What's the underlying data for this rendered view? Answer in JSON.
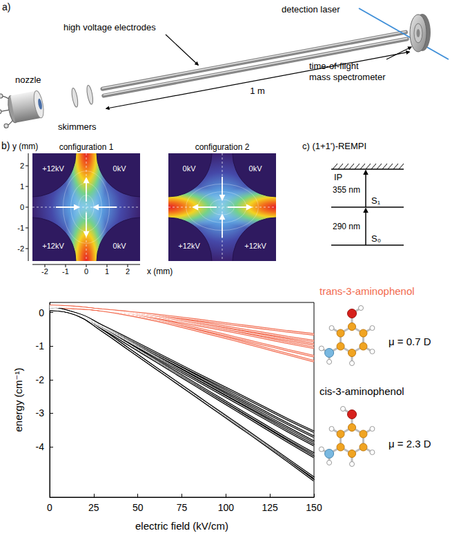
{
  "panel_a": {
    "label": "a)",
    "labels": {
      "nozzle": "nozzle",
      "skimmers": "skimmers",
      "electrodes": "high voltage electrodes",
      "laser": "detection laser",
      "length": "1 m",
      "spectrometer": "time-of-flight mass spectrometer"
    }
  },
  "panel_b": {
    "label": "b)",
    "x_axis_title": "x (mm)",
    "y_axis_title": "y (mm)",
    "xlim": [
      -2.6,
      2.6
    ],
    "ylim": [
      -2.6,
      2.6
    ],
    "xticks": [
      -2,
      -1,
      0,
      1,
      2
    ],
    "yticks": [
      -2,
      -1,
      0,
      1,
      2
    ],
    "configurations": [
      {
        "title": "configuration 1",
        "electrodes": {
          "top_left": "+12kV",
          "top_right": "0kV",
          "bottom_left": "+12kV",
          "bottom_right": "0kV"
        }
      },
      {
        "title": "configuration 2",
        "electrodes": {
          "top_left": "0kV",
          "top_right": "0kV",
          "bottom_left": "+12kV",
          "bottom_right": "+12kV"
        }
      }
    ]
  },
  "panel_c": {
    "label": "c)",
    "title": "(1+1')-REMPI",
    "levels": [
      "S₀",
      "S₁",
      "IP"
    ],
    "transitions": [
      "290 nm",
      "355 nm"
    ]
  },
  "chart_data": {
    "type": "line",
    "x_label": "electric field (kV/cm)",
    "y_label": "energy (cm⁻¹)",
    "x": [
      0,
      15,
      30,
      45,
      60,
      75,
      90,
      105,
      120,
      135,
      150
    ],
    "xlim": [
      0,
      150
    ],
    "xticks": [
      0,
      25,
      50,
      75,
      100,
      125,
      150
    ],
    "ylim": [
      -5.5,
      0.3
    ],
    "yticks": [
      -4,
      -3,
      -2,
      -1,
      0
    ],
    "grid": false,
    "line_style": "double",
    "series": [
      {
        "name": "trans-3-aminophenol",
        "annotation": "μ = 0.7 D",
        "color": "#f26b4f",
        "values": [
          [
            0.15,
            0.13,
            0.08,
            0.01,
            -0.07,
            -0.16,
            -0.26,
            -0.36,
            -0.46,
            -0.56,
            -0.65
          ],
          [
            0.17,
            0.14,
            0.08,
            0.0,
            -0.1,
            -0.22,
            -0.34,
            -0.47,
            -0.6,
            -0.73,
            -0.85
          ],
          [
            0.17,
            0.14,
            0.07,
            -0.02,
            -0.13,
            -0.26,
            -0.39,
            -0.53,
            -0.67,
            -0.81,
            -0.95
          ],
          [
            0.18,
            0.15,
            0.07,
            -0.03,
            -0.15,
            -0.29,
            -0.43,
            -0.58,
            -0.74,
            -0.9,
            -1.05
          ],
          [
            0.2,
            0.16,
            0.07,
            -0.05,
            -0.2,
            -0.37,
            -0.55,
            -0.74,
            -0.93,
            -1.12,
            -1.3
          ],
          [
            0.2,
            0.16,
            0.06,
            -0.07,
            -0.23,
            -0.42,
            -0.62,
            -0.82,
            -1.03,
            -1.24,
            -1.45
          ]
        ]
      },
      {
        "name": "cis-3-aminophenol",
        "annotation": "μ = 2.3 D",
        "color": "#000000",
        "values": [
          [
            0.08,
            -0.03,
            -0.4,
            -0.79,
            -1.19,
            -1.59,
            -1.99,
            -2.38,
            -2.78,
            -3.18,
            -3.55
          ],
          [
            0.08,
            -0.03,
            -0.41,
            -0.83,
            -1.24,
            -1.65,
            -2.07,
            -2.48,
            -2.9,
            -3.31,
            -3.7
          ],
          [
            0.1,
            -0.04,
            -0.43,
            -0.86,
            -1.29,
            -1.72,
            -2.15,
            -2.58,
            -3.0,
            -3.43,
            -3.85
          ],
          [
            0.1,
            -0.04,
            -0.44,
            -0.88,
            -1.32,
            -1.77,
            -2.21,
            -2.65,
            -3.09,
            -3.53,
            -3.95
          ],
          [
            0.12,
            -0.05,
            -0.47,
            -0.94,
            -1.41,
            -1.88,
            -2.35,
            -2.82,
            -3.29,
            -3.76,
            -4.2
          ],
          [
            0.12,
            -0.06,
            -0.48,
            -0.96,
            -1.44,
            -1.92,
            -2.4,
            -2.88,
            -3.36,
            -3.84,
            -4.3
          ],
          [
            0.15,
            -0.05,
            -0.54,
            -1.09,
            -1.64,
            -2.18,
            -2.73,
            -3.27,
            -3.82,
            -4.37,
            -4.92
          ],
          [
            0.15,
            -0.05,
            -0.55,
            -1.1,
            -1.65,
            -2.2,
            -2.75,
            -3.3,
            -3.85,
            -4.42,
            -5.0
          ]
        ]
      }
    ]
  }
}
